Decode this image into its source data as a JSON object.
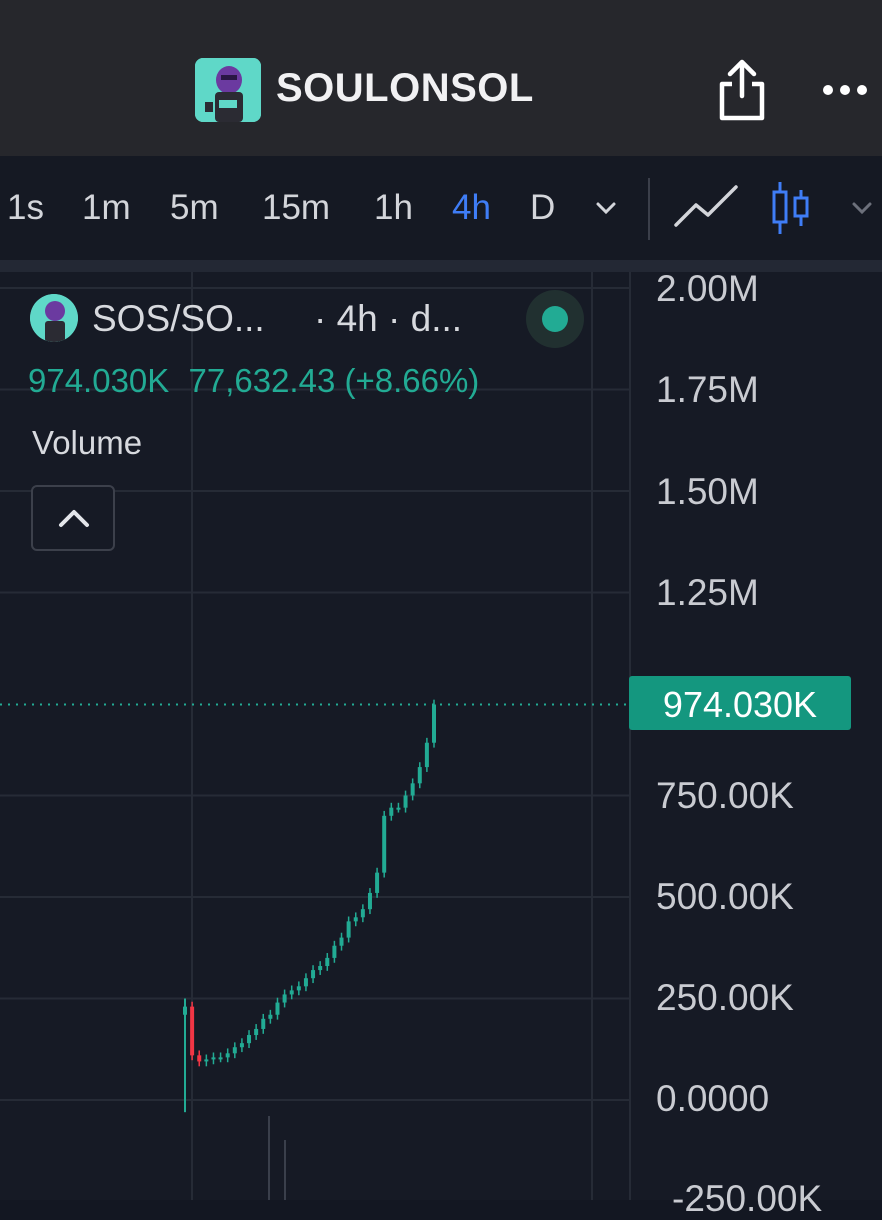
{
  "header": {
    "title": "SOULONSOL",
    "logo_icon": "pepe-soul-logo",
    "share_icon": "share-icon",
    "more_icon": "more-horizontal-icon"
  },
  "timeframes": {
    "items": [
      "1s",
      "1m",
      "5m",
      "15m",
      "1h",
      "4h",
      "D"
    ],
    "active": "4h",
    "accent": "#3f7df6"
  },
  "legend": {
    "symbol": "SOS/SO...",
    "interval": "· 4h · d...",
    "price": "974.030K",
    "change": "77,632.43 (+8.66%)",
    "volume_label": "Volume",
    "status_color": "#22ab94"
  },
  "price_axis": {
    "labels": [
      "2.00M",
      "1.75M",
      "1.50M",
      "1.25M",
      "750.00K",
      "500.00K",
      "250.00K",
      "0.0000",
      "-250.00K"
    ],
    "current_price": "974.030K"
  },
  "chart_data": {
    "type": "line",
    "ylim": [
      -250000,
      2000000
    ],
    "y_ticks": [
      2000000,
      1750000,
      1500000,
      1250000,
      750000,
      500000,
      250000,
      0,
      -250000
    ],
    "last_price": 974030,
    "series": [
      {
        "values": [
          230000,
          110000,
          95000,
          100000,
          105000,
          105000,
          115000,
          130000,
          140000,
          160000,
          175000,
          200000,
          210000,
          240000,
          260000,
          270000,
          280000,
          300000,
          320000,
          330000,
          350000,
          380000,
          400000,
          440000,
          450000,
          470000,
          510000,
          560000,
          700000,
          720000,
          720000,
          750000,
          780000,
          820000,
          880000,
          974030
        ]
      }
    ],
    "up_color": "#22ab94",
    "down_color": "#f23645"
  }
}
